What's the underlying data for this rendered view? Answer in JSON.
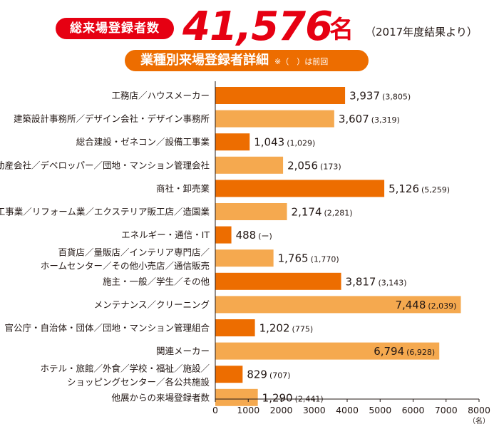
{
  "header": {
    "total_label": "総来場登録者数",
    "total_value": "41,576",
    "total_unit": "名",
    "year_note": "（2017年度結果より）",
    "subtitle": "業種別来場登録者詳細",
    "subtitle_note": "※（　）は前回"
  },
  "colors": {
    "red": "#e60012",
    "dark_orange": "#ed6d00",
    "light_orange": "#f5a94f"
  },
  "chart_data": {
    "type": "bar",
    "orientation": "horizontal",
    "categories": [
      [
        "工務店／ハウスメーカー"
      ],
      [
        "建築設計事務所／デザイン会社・デザイン事務所"
      ],
      [
        "総合建設・ゼネコン／設備工事業"
      ],
      [
        "不動産会社／デベロッパー／団地・マンション管理会社"
      ],
      [
        "商社・卸売業"
      ],
      [
        "内装工事業／リフォーム業／エクステリア販工店／造園業"
      ],
      [
        "エネルギー・通信・IT"
      ],
      [
        "百貨店／量販店／インテリア専門店／",
        "ホームセンター／その他小売店／通信販売"
      ],
      [
        "施主・一般／学生／その他"
      ],
      [
        "メンテナンス／クリーニング"
      ],
      [
        "官公庁・自治体・団体／団地・マンション管理組合"
      ],
      [
        "関連メーカー"
      ],
      [
        "ホテル・旅館／外食／学校・福祉／施設／",
        "ショッピングセンター／各公共施設"
      ],
      [
        "他展からの来場登録者数"
      ]
    ],
    "values": [
      3937,
      3607,
      1043,
      2056,
      5126,
      2174,
      488,
      1765,
      3817,
      7448,
      1202,
      6794,
      829,
      1290
    ],
    "value_labels": [
      "3,937",
      "3,607",
      "1,043",
      "2,056",
      "5,126",
      "2,174",
      "488",
      "1,765",
      "3,817",
      "7,448",
      "1,202",
      "6,794",
      "829",
      "1,290"
    ],
    "previous_labels": [
      "(3,805)",
      "(3,319)",
      "(1,029)",
      "(173)",
      "(5,259)",
      "(2,281)",
      "(ー)",
      "(1,770)",
      "(3,143)",
      "(2,039)",
      "(775)",
      "(6,928)",
      "(707)",
      "(2,441)"
    ],
    "label_inside": [
      false,
      false,
      false,
      false,
      false,
      false,
      false,
      false,
      false,
      true,
      false,
      true,
      false,
      false
    ],
    "bar_colors": [
      "#ed6d00",
      "#f5a94f",
      "#ed6d00",
      "#f5a94f",
      "#ed6d00",
      "#f5a94f",
      "#ed6d00",
      "#f5a94f",
      "#ed6d00",
      "#f5a94f",
      "#ed6d00",
      "#f5a94f",
      "#ed6d00",
      "#f5a94f"
    ],
    "xlim": [
      0,
      8000
    ],
    "xticks": [
      0,
      1000,
      2000,
      3000,
      4000,
      5000,
      6000,
      7000,
      8000
    ],
    "xunit": "（名）"
  }
}
